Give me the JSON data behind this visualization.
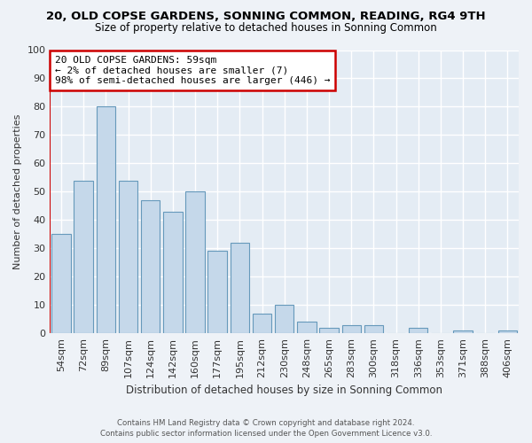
{
  "title": "20, OLD COPSE GARDENS, SONNING COMMON, READING, RG4 9TH",
  "subtitle": "Size of property relative to detached houses in Sonning Common",
  "xlabel": "Distribution of detached houses by size in Sonning Common",
  "ylabel": "Number of detached properties",
  "bar_color": "#c5d8ea",
  "bar_edge_color": "#6699bb",
  "categories": [
    "54sqm",
    "72sqm",
    "89sqm",
    "107sqm",
    "124sqm",
    "142sqm",
    "160sqm",
    "177sqm",
    "195sqm",
    "212sqm",
    "230sqm",
    "248sqm",
    "265sqm",
    "283sqm",
    "300sqm",
    "318sqm",
    "336sqm",
    "353sqm",
    "371sqm",
    "388sqm",
    "406sqm"
  ],
  "values": [
    35,
    54,
    80,
    54,
    47,
    43,
    50,
    29,
    32,
    7,
    10,
    4,
    2,
    3,
    3,
    0,
    2,
    0,
    1,
    0,
    1
  ],
  "ylim": [
    0,
    100
  ],
  "annotation_line1": "20 OLD COPSE GARDENS: 59sqm",
  "annotation_line2": "← 2% of detached houses are smaller (7)",
  "annotation_line3": "98% of semi-detached houses are larger (446) →",
  "annotation_box_color": "#ffffff",
  "annotation_box_edge_color": "#cc0000",
  "footer_line1": "Contains HM Land Registry data © Crown copyright and database right 2024.",
  "footer_line2": "Contains public sector information licensed under the Open Government Licence v3.0.",
  "background_color": "#eef2f7",
  "plot_bg_color": "#e4ecf4",
  "grid_color": "#ffffff",
  "title_color": "#000000",
  "subtitle_color": "#000000"
}
